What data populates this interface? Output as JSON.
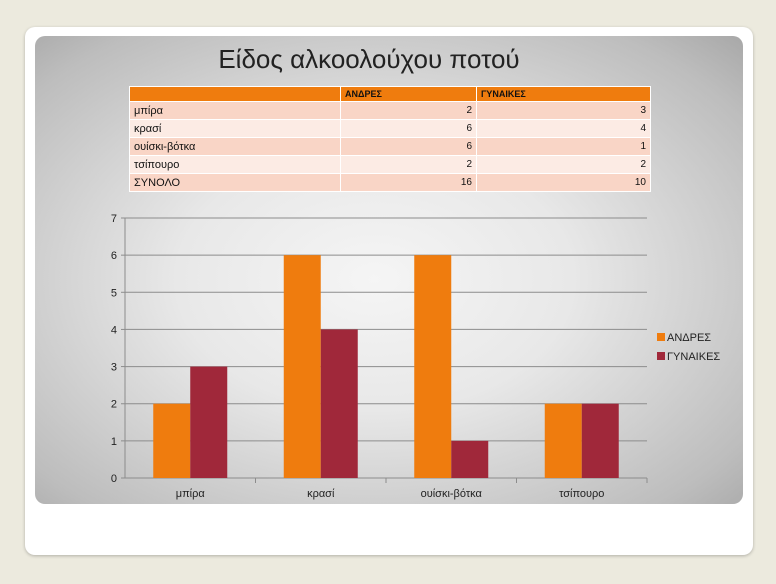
{
  "title": "Είδος αλκοολούχου ποτού",
  "table": {
    "headers": [
      "",
      "ΑΝΔΡΕΣ",
      "ΓΥΝΑΙΚΕΣ"
    ],
    "rows": [
      {
        "label": "μπίρα",
        "men": "2",
        "women": "3"
      },
      {
        "label": "κρασί",
        "men": "6",
        "women": "4"
      },
      {
        "label": "ουίσκι-βότκα",
        "men": "6",
        "women": "1"
      },
      {
        "label": "τσίπουρο",
        "men": "2",
        "women": "2"
      },
      {
        "label": "ΣΥΝΟΛΟ",
        "men": "16",
        "women": "10"
      }
    ]
  },
  "colors": {
    "men": "#ef7c0e",
    "women": "#a0283a",
    "grid": "#8c8c8c"
  },
  "chart_data": {
    "type": "bar",
    "categories": [
      "μπίρα",
      "κρασί",
      "ουίσκι-βότκα",
      "τσίπουρο"
    ],
    "series": [
      {
        "name": "ΑΝΔΡΕΣ",
        "values": [
          2,
          6,
          6,
          2
        ]
      },
      {
        "name": "ΓΥΝΑΙΚΕΣ",
        "values": [
          3,
          4,
          1,
          2
        ]
      }
    ],
    "ylim": [
      0,
      7
    ],
    "yticks": [
      "0",
      "1",
      "2",
      "3",
      "4",
      "5",
      "6",
      "7"
    ],
    "grid": true,
    "legend": "right"
  }
}
